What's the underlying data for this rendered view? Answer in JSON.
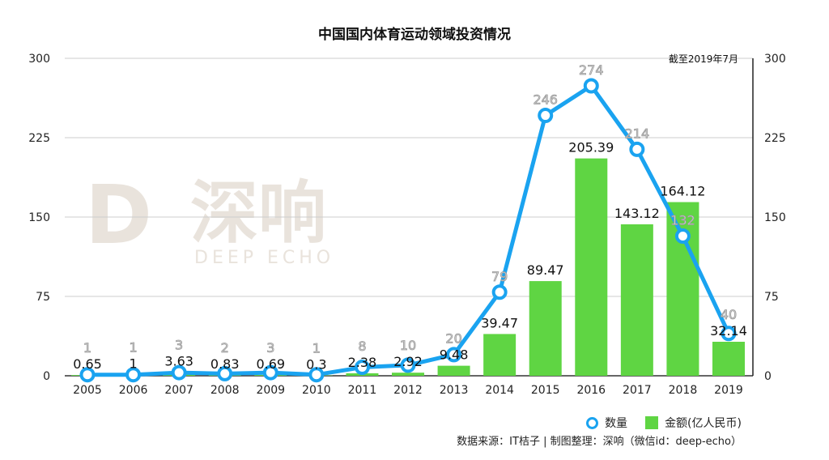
{
  "chart_data": {
    "type": "bar+line",
    "title": "中国国内体育运动领域投资情况",
    "annotation": "截至2019年7月",
    "categories": [
      "2005",
      "2006",
      "2007",
      "2008",
      "2009",
      "2010",
      "2011",
      "2012",
      "2013",
      "2014",
      "2015",
      "2016",
      "2017",
      "2018",
      "2019"
    ],
    "series": [
      {
        "name": "金额(亿人民币)",
        "type": "bar",
        "color": "#5fd543",
        "values": [
          0.65,
          1,
          3.63,
          0.83,
          0.69,
          0.3,
          2.38,
          2.92,
          9.48,
          39.47,
          89.47,
          205.39,
          143.12,
          164.12,
          32.14
        ],
        "labels": [
          "0.65",
          "1",
          "3.63",
          "0.83",
          "0.69",
          "0.3",
          "2.38",
          "2.92",
          "9.48",
          "39.47",
          "89.47",
          "205.39",
          "143.12",
          "164.12",
          "32.14"
        ]
      },
      {
        "name": "数量",
        "type": "line",
        "color": "#1aa3f0",
        "values": [
          1,
          1,
          3,
          2,
          3,
          1,
          8,
          10,
          20,
          79,
          246,
          274,
          214,
          132,
          40
        ],
        "labels": [
          "1",
          "1",
          "3",
          "2",
          "3",
          "1",
          "8",
          "10",
          "20",
          "79",
          "246",
          "274",
          "214",
          "132",
          "40"
        ]
      }
    ],
    "yticks": [
      "0",
      "75",
      "150",
      "225",
      "300"
    ],
    "ylim": [
      0,
      300
    ],
    "y2ticks": [
      "0",
      "75",
      "150",
      "225",
      "300"
    ],
    "y2lim": [
      0,
      300
    ],
    "grid": true,
    "legend_position": "bottom-right",
    "source": "数据来源：IT桔子 | 制图整理：深响（微信id：deep-echo）"
  },
  "watermark": {
    "cn": "深响",
    "en": "DEEP ECHO"
  }
}
